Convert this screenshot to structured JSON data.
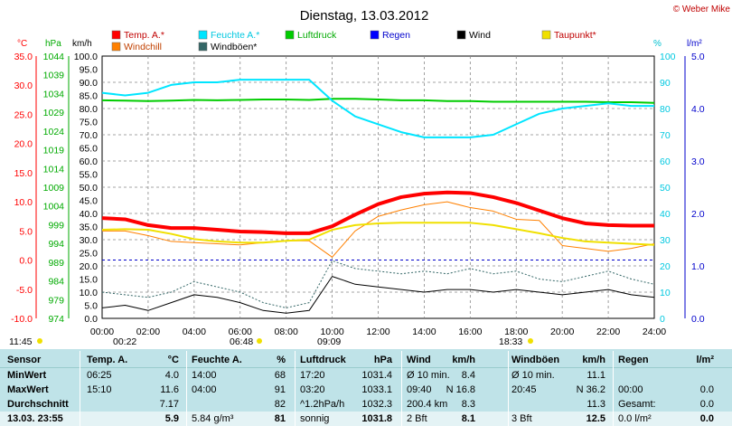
{
  "header": {
    "title": "Dienstag, 13.03.2012",
    "copyright": "© Weber Mike"
  },
  "legend": [
    {
      "label": "Temp. A.*",
      "color": "#ff0000"
    },
    {
      "label": "Feuchte A.*",
      "color": "#00e5ff"
    },
    {
      "label": "Luftdruck",
      "color": "#00cc00"
    },
    {
      "label": "Regen",
      "color": "#0000ff"
    },
    {
      "label": "Wind",
      "color": "#000000"
    },
    {
      "label": "Taupunkt*",
      "color": "#f0e000"
    },
    {
      "label": "Windchill",
      "color": "#ff8000"
    },
    {
      "label": "Windböen*",
      "color": "#336666"
    }
  ],
  "axes": {
    "temp_unit": "°C",
    "press_unit": "hPa",
    "wind_unit": "km/h",
    "hum_unit": "%",
    "rain_unit": "l/m²",
    "temp_ticks": [
      "35.0",
      "30.0",
      "25.0",
      "20.0",
      "15.0",
      "10.0",
      "5.0",
      "0.0",
      "-5.0",
      "-10.0"
    ],
    "press_ticks": [
      "1044",
      "1039",
      "1034",
      "1029",
      "1024",
      "1019",
      "1014",
      "1009",
      "1004",
      "999",
      "994",
      "989",
      "984",
      "979",
      "974"
    ],
    "wind_ticks": [
      "100.0",
      "95.0",
      "90.0",
      "85.0",
      "80.0",
      "75.0",
      "70.0",
      "65.0",
      "60.0",
      "55.0",
      "50.0",
      "45.0",
      "40.0",
      "35.0",
      "30.0",
      "25.0",
      "20.0",
      "15.0",
      "10.0",
      "5.0",
      "0.0"
    ],
    "hum_ticks": [
      "100",
      "90",
      "80",
      "70",
      "60",
      "50",
      "40",
      "30",
      "20",
      "10",
      "0"
    ],
    "rain_ticks": [
      "5.0",
      "4.0",
      "3.0",
      "2.0",
      "1.0",
      "0.0"
    ],
    "x_ticks": [
      "00:00",
      "02:00",
      "04:00",
      "06:00",
      "08:00",
      "10:00",
      "12:00",
      "14:00",
      "16:00",
      "18:00",
      "20:00",
      "22:00",
      "24:00"
    ]
  },
  "sun_events": {
    "moonrise": "11:45",
    "sunrise": "06:48",
    "sunset": "18:33",
    "moon_a": "00:22",
    "moon_b": "09:09"
  },
  "chart_data": {
    "type": "line",
    "x_unit": "hours",
    "x": [
      0,
      1,
      2,
      3,
      4,
      5,
      6,
      7,
      8,
      9,
      10,
      11,
      12,
      13,
      14,
      15,
      16,
      17,
      18,
      19,
      20,
      21,
      22,
      23,
      24
    ],
    "series": [
      {
        "name": "Temp. A.*",
        "axis": "temp",
        "values": [
          7.2,
          7.0,
          6.0,
          5.5,
          5.5,
          5.2,
          4.9,
          4.8,
          4.6,
          4.6,
          5.8,
          7.8,
          9.6,
          10.8,
          11.4,
          11.6,
          11.5,
          10.8,
          9.8,
          8.5,
          7.2,
          6.3,
          6.0,
          5.9,
          5.9
        ]
      },
      {
        "name": "Feuchte A.*",
        "axis": "hum",
        "values": [
          86,
          85,
          86,
          89,
          90,
          90,
          91,
          91,
          91,
          91,
          83,
          77,
          74,
          71,
          69,
          69,
          69,
          70,
          74,
          78,
          80,
          81,
          82,
          81,
          81
        ]
      },
      {
        "name": "Luftdruck",
        "axis": "press",
        "values": [
          1032.2,
          1032.1,
          1032.0,
          1032.1,
          1032.3,
          1032.2,
          1032.3,
          1032.4,
          1032.4,
          1032.3,
          1032.6,
          1032.6,
          1032.4,
          1032.2,
          1032.2,
          1032.0,
          1032.0,
          1031.8,
          1031.8,
          1031.8,
          1031.8,
          1031.8,
          1031.7,
          1031.7,
          1031.5
        ]
      },
      {
        "name": "Taupunkt*",
        "axis": "temp",
        "values": [
          5.2,
          5.3,
          5.2,
          4.5,
          3.6,
          3.2,
          3.0,
          3.0,
          3.3,
          3.5,
          5.2,
          6.0,
          6.3,
          6.4,
          6.4,
          6.4,
          6.4,
          6.0,
          5.3,
          4.6,
          3.8,
          3.2,
          3.0,
          2.8,
          2.6
        ]
      },
      {
        "name": "Windchill",
        "axis": "temp",
        "values": [
          5.0,
          5.0,
          4.2,
          3.2,
          3.0,
          2.8,
          2.6,
          3.0,
          3.3,
          3.3,
          0.5,
          5.0,
          7.5,
          8.6,
          9.5,
          10.0,
          9.0,
          8.4,
          7.0,
          6.8,
          2.5,
          2.0,
          1.5,
          2.0,
          2.8
        ]
      },
      {
        "name": "Wind",
        "axis": "wind",
        "values": [
          4,
          5,
          3,
          6,
          9,
          8,
          6,
          3,
          2,
          3,
          16,
          13,
          12,
          11,
          10,
          11,
          11,
          10,
          11,
          10,
          9,
          10,
          11,
          9,
          8
        ]
      },
      {
        "name": "Windböen*",
        "axis": "wind",
        "values": [
          10,
          9,
          8,
          10,
          14,
          12,
          10,
          6,
          4,
          6,
          22,
          19,
          18,
          17,
          18,
          17,
          19,
          17,
          18,
          15,
          14,
          16,
          18,
          15,
          13
        ]
      }
    ],
    "xlim": [
      0,
      24
    ],
    "ylim_wind": [
      0,
      100
    ],
    "ylim_temp": [
      -10,
      35
    ],
    "ylim_press": [
      974,
      1044
    ],
    "ylim_hum": [
      0,
      100
    ],
    "ylim_rain": [
      0,
      5
    ],
    "grid": true,
    "legend_position": "top"
  },
  "table": {
    "headers": [
      "Sensor",
      "Temp. A.",
      "°C",
      "Feuchte A.",
      "%",
      "Luftdruck",
      "hPa",
      "Wind",
      "km/h",
      "Windböen",
      "km/h",
      "Regen",
      "l/m²"
    ],
    "rows": [
      [
        "MinWert",
        "06:25",
        "4.0",
        "14:00",
        "68",
        "17:20",
        "1031.4",
        "Ø 10 min.",
        "8.4",
        "Ø 10 min.",
        "11.1",
        "",
        ""
      ],
      [
        "MaxWert",
        "15:10",
        "11.6",
        "04:00",
        "91",
        "03:20",
        "1033.1",
        "09:40",
        "N 16.8",
        "20:45",
        "N 36.2",
        "00:00",
        "0.0"
      ],
      [
        "Durchschnitt",
        "",
        "7.17",
        "",
        "82",
        "^1.2hPa/h",
        "1032.3",
        "200.4 km",
        "8.3",
        "",
        "11.3",
        "Gesamt:",
        "0.0"
      ],
      [
        "13.03. 23:55",
        "",
        "5.9",
        "5.84 g/m³",
        "81",
        "sonnig",
        "1031.8",
        "2 Bft",
        "8.1",
        "3 Bft",
        "12.5",
        "0.0 l/m²",
        "0.0"
      ]
    ]
  }
}
